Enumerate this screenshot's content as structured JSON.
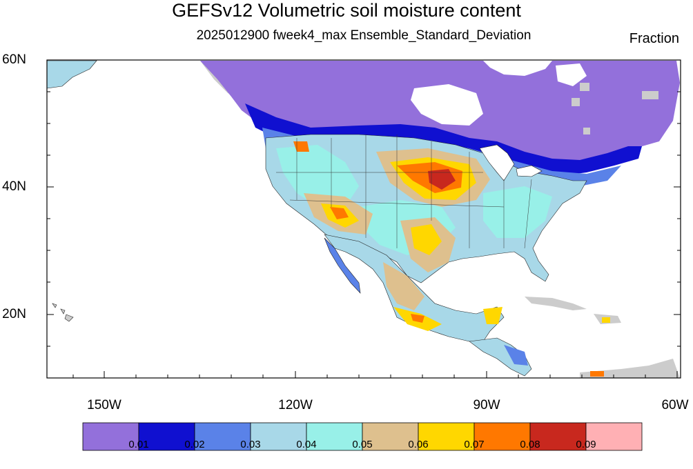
{
  "title": "GEFSv12 Volumetric soil moisture content",
  "subtitle": "2025012900 fweek4_max Ensemble_Standard_Deviation",
  "units": "Fraction",
  "lat_labels": [
    "60N",
    "40N",
    "20N"
  ],
  "lon_labels": [
    "150W",
    "120W",
    "90W",
    "60W"
  ],
  "colorbar": {
    "colors": [
      "#9370DB",
      "#1010D0",
      "#5A82E8",
      "#A8D8E8",
      "#98F0E8",
      "#DEC08E",
      "#FFD700",
      "#FF7800",
      "#C8281E",
      "#FFB0B4"
    ],
    "labels": [
      "0.01",
      "0.02",
      "0.03",
      "0.04",
      "0.05",
      "0.06",
      "0.07",
      "0.08",
      "0.09"
    ]
  },
  "map": {
    "region": "North America",
    "lat_range": [
      10,
      60
    ],
    "lon_range": [
      -160,
      -60
    ],
    "land_missing_color": "#CCCCCC"
  }
}
